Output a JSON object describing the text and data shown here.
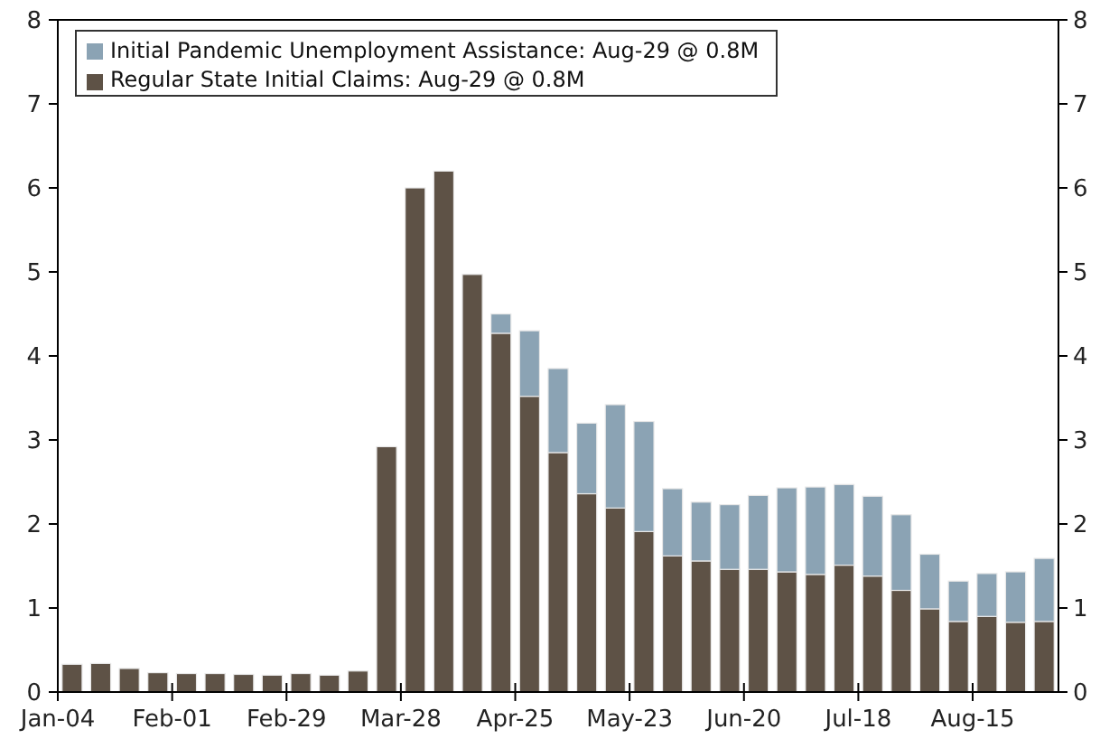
{
  "chart_data": {
    "type": "bar",
    "stacked": true,
    "legend": "top left",
    "categories": [
      "Jan-04",
      null,
      null,
      null,
      "Feb-01",
      null,
      null,
      null,
      "Feb-29",
      null,
      null,
      null,
      "Mar-28",
      null,
      null,
      null,
      "Apr-25",
      null,
      null,
      null,
      "May-23",
      null,
      null,
      null,
      "Jun-20",
      null,
      null,
      null,
      "Jul-18",
      null,
      null,
      null,
      "Aug-15",
      null,
      null
    ],
    "series": [
      {
        "name": "Regular State Initial Claims: Aug-29 @ 0.8M",
        "color": "#5e5246",
        "values": [
          0.33,
          0.34,
          0.28,
          0.23,
          0.22,
          0.22,
          0.21,
          0.2,
          0.22,
          0.2,
          0.25,
          2.92,
          6.0,
          6.2,
          4.97,
          4.27,
          3.52,
          2.85,
          2.36,
          2.19,
          1.91,
          1.62,
          1.56,
          1.46,
          1.46,
          1.43,
          1.4,
          1.51,
          1.38,
          1.21,
          0.99,
          0.84,
          0.9,
          0.83,
          0.84
        ]
      },
      {
        "name": "Initial Pandemic Unemployment Assistance: Aug-29 @ 0.8M",
        "color": "#8ba3b4",
        "values": [
          null,
          null,
          null,
          null,
          null,
          null,
          null,
          null,
          null,
          null,
          null,
          null,
          null,
          null,
          null,
          0.23,
          0.78,
          1.0,
          0.84,
          1.23,
          1.31,
          0.8,
          0.7,
          0.77,
          0.88,
          1.0,
          1.04,
          0.96,
          0.95,
          0.9,
          0.65,
          0.48,
          0.51,
          0.6,
          0.75
        ]
      }
    ],
    "ylim": [
      0,
      8
    ],
    "yticks": [
      0,
      1,
      2,
      3,
      4,
      5,
      6,
      7,
      8
    ],
    "y2lim": [
      0,
      8
    ],
    "y2ticks": [
      0,
      1,
      2,
      3,
      4,
      5,
      6,
      7,
      8
    ]
  }
}
